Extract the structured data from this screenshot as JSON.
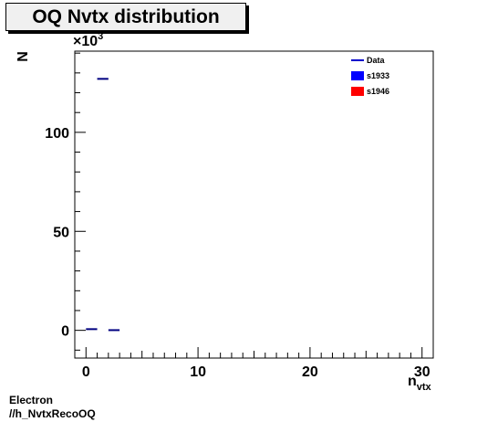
{
  "title": "OQ Nvtx distribution",
  "footer": {
    "line1": "Electron",
    "line2": "//h_NvtxRecoOQ"
  },
  "chart_data": {
    "type": "scatter",
    "title": "OQ Nvtx distribution",
    "xlabel_main": "n",
    "xlabel_sub": "vtx",
    "ylabel": "N",
    "y_multiplier": "×10",
    "y_multiplier_exp": "3",
    "xlim": [
      -1,
      31
    ],
    "ylim": [
      -14,
      141
    ],
    "x_ticks": [
      0,
      10,
      20,
      30
    ],
    "x_tick_labels": [
      "0",
      "10",
      "20",
      "30"
    ],
    "y_ticks": [
      0,
      50,
      100
    ],
    "y_tick_labels": [
      "0",
      "50",
      "100"
    ],
    "legend_placement": "top-right",
    "legend": [
      {
        "name": "Data",
        "color": "#0000cc",
        "style": "line"
      },
      {
        "name": "s1933",
        "color": "#0000ff",
        "style": "box"
      },
      {
        "name": "s1946",
        "color": "#ff0000",
        "style": "box"
      }
    ],
    "series": [
      {
        "name": "Data",
        "color": "#000080",
        "points": [
          {
            "x": 0.5,
            "y": 0.6
          },
          {
            "x": 1.5,
            "y": 127.0
          },
          {
            "x": 2.5,
            "y": 0.1
          }
        ]
      }
    ]
  }
}
